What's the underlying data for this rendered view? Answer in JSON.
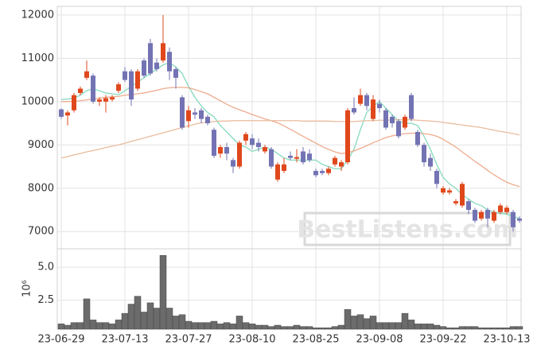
{
  "chart_data": [
    {
      "type": "candlestick",
      "categories": [
        "23-06-29",
        null,
        null,
        null,
        null,
        null,
        null,
        null,
        null,
        null,
        "23-07-13",
        null,
        null,
        null,
        null,
        null,
        null,
        null,
        null,
        null,
        "23-07-27",
        null,
        null,
        null,
        null,
        null,
        null,
        null,
        null,
        null,
        "23-08-10",
        null,
        null,
        null,
        null,
        null,
        null,
        null,
        null,
        null,
        "23-08-25",
        null,
        null,
        null,
        null,
        null,
        null,
        null,
        null,
        null,
        "23-09-08",
        null,
        null,
        null,
        null,
        null,
        null,
        null,
        null,
        null,
        "23-09-22",
        null,
        null,
        null,
        null,
        null,
        null,
        null,
        null,
        null,
        "23-10-13",
        null,
        null
      ],
      "open": [
        9820,
        9680,
        9800,
        10200,
        10550,
        10600,
        10000,
        10000,
        10050,
        10250,
        10700,
        10700,
        10300,
        10950,
        11350,
        10900,
        10950,
        11150,
        10750,
        10100,
        9550,
        9750,
        9800,
        9650,
        9350,
        8800,
        8950,
        8650,
        8500,
        9100,
        9150,
        9050,
        8850,
        8900,
        8200,
        8400,
        8750,
        8680,
        8850,
        8800,
        8400,
        8400,
        8350,
        8550,
        8500,
        8600,
        9850,
        9950,
        10150,
        9600,
        9950,
        9800,
        9650,
        9550,
        9400,
        10150,
        9300,
        9000,
        8700,
        8400,
        7900,
        7900,
        7650,
        7600,
        7700,
        7500,
        7300,
        7500,
        7250,
        7450,
        7450,
        7450,
        7300
      ],
      "high": [
        9850,
        9800,
        10200,
        10350,
        10950,
        10650,
        10100,
        10150,
        10150,
        10450,
        10800,
        10750,
        10750,
        11000,
        11450,
        11000,
        12000,
        11250,
        10800,
        10150,
        9900,
        9850,
        9850,
        9700,
        9400,
        9000,
        9050,
        8700,
        9100,
        9300,
        9250,
        9150,
        9000,
        8950,
        8600,
        8700,
        8850,
        8900,
        8950,
        8900,
        8450,
        8450,
        8500,
        8750,
        8650,
        9850,
        10100,
        10300,
        10200,
        10150,
        10050,
        9850,
        9700,
        9600,
        9700,
        10200,
        9350,
        9050,
        8800,
        8450,
        8050,
        8000,
        7750,
        8150,
        7750,
        7550,
        7500,
        7550,
        7500,
        7650,
        7600,
        7500,
        7350
      ],
      "low": [
        9600,
        9450,
        9750,
        10150,
        10500,
        9950,
        9900,
        9750,
        10000,
        10200,
        10450,
        9900,
        10250,
        10550,
        10600,
        10700,
        10900,
        10500,
        10300,
        9350,
        9400,
        9600,
        9500,
        9450,
        8700,
        8700,
        8650,
        8350,
        8450,
        9000,
        8900,
        8850,
        8800,
        8450,
        8150,
        8350,
        8650,
        8600,
        8550,
        8600,
        8250,
        8300,
        8300,
        8500,
        8400,
        8550,
        9700,
        9900,
        9800,
        9550,
        9750,
        9350,
        9400,
        9150,
        9350,
        9550,
        8950,
        8500,
        8400,
        8000,
        7850,
        7850,
        7600,
        7550,
        7400,
        7200,
        7250,
        7100,
        7200,
        7400,
        7400,
        7000,
        7200
      ],
      "close": [
        9650,
        9750,
        10150,
        10300,
        10700,
        10000,
        10050,
        10080,
        10100,
        10400,
        10500,
        10050,
        10700,
        10600,
        10650,
        10750,
        11350,
        10700,
        10550,
        9400,
        9800,
        9700,
        9600,
        9500,
        8750,
        8950,
        8800,
        8500,
        9050,
        9250,
        9000,
        8950,
        8950,
        8500,
        8550,
        8550,
        8700,
        8720,
        8600,
        8650,
        8300,
        8350,
        8450,
        8700,
        8600,
        9800,
        9750,
        10150,
        9900,
        10050,
        9850,
        9400,
        9500,
        9200,
        9650,
        9600,
        9000,
        8600,
        8500,
        8100,
        8000,
        7950,
        7700,
        8100,
        7500,
        7250,
        7450,
        7300,
        7450,
        7600,
        7550,
        7100,
        7250
      ],
      "up_color": "#e0481c",
      "down_color": "#7373b4",
      "lines": [
        {
          "color": "#86d9bd",
          "values": [
            10050,
            10060,
            10080,
            10150,
            10250,
            10300,
            10250,
            10200,
            10180,
            10160,
            10250,
            10350,
            10450,
            10550,
            10650,
            10750,
            10850,
            10900,
            10800,
            10650,
            10350,
            10100,
            9900,
            9750,
            9650,
            9450,
            9300,
            9150,
            9000,
            8950,
            8850,
            8900,
            8950,
            8900,
            8800,
            8700,
            8650,
            8650,
            8650,
            8650,
            8650,
            8550,
            8500,
            8450,
            8450,
            8650,
            8900,
            9350,
            9750,
            9900,
            10000,
            9850,
            9700,
            9550,
            9500,
            9500,
            9450,
            9200,
            8900,
            8550,
            8250,
            8100,
            8000,
            7850,
            7750,
            7650,
            7600,
            7500,
            7450,
            7420,
            7400,
            7350,
            7300
          ]
        },
        {
          "color": "#eeab8e",
          "values": [
            10000,
            10000,
            10010,
            10020,
            10040,
            10060,
            10080,
            10100,
            10110,
            10120,
            10150,
            10160,
            10180,
            10200,
            10230,
            10260,
            10300,
            10320,
            10330,
            10330,
            10320,
            10280,
            10230,
            10180,
            10100,
            10020,
            9940,
            9870,
            9810,
            9760,
            9700,
            9650,
            9600,
            9560,
            9510,
            9440,
            9360,
            9280,
            9200,
            9120,
            9040,
            8960,
            8900,
            8840,
            8800,
            8820,
            8860,
            8920,
            8980,
            9050,
            9110,
            9170,
            9210,
            9240,
            9260,
            9270,
            9270,
            9260,
            9240,
            9200,
            9130,
            9040,
            8950,
            8840,
            8730,
            8620,
            8520,
            8410,
            8310,
            8220,
            8140,
            8080,
            8040
          ]
        },
        {
          "color": "#e9bc9e",
          "values": [
            8700,
            8730,
            8770,
            8800,
            8840,
            8870,
            8900,
            8940,
            8970,
            9000,
            9040,
            9080,
            9120,
            9160,
            9200,
            9240,
            9280,
            9320,
            9360,
            9400,
            9440,
            9480,
            9510,
            9530,
            9540,
            9550,
            9550,
            9560,
            9560,
            9560,
            9560,
            9560,
            9560,
            9560,
            9560,
            9560,
            9560,
            9560,
            9550,
            9550,
            9550,
            9550,
            9550,
            9540,
            9540,
            9540,
            9540,
            9550,
            9560,
            9560,
            9570,
            9570,
            9580,
            9580,
            9580,
            9580,
            9570,
            9560,
            9550,
            9540,
            9520,
            9500,
            9480,
            9460,
            9440,
            9420,
            9400,
            9370,
            9340,
            9310,
            9290,
            9260,
            9230
          ]
        }
      ],
      "ylim": [
        6600,
        12200
      ],
      "yticks": [
        7000,
        8000,
        9000,
        10000,
        11000,
        12000
      ],
      "grid": true,
      "watermark": "BestListens.com"
    },
    {
      "type": "bar",
      "values": [
        0.7,
        0.6,
        0.8,
        0.8,
        2.6,
        1.0,
        0.8,
        0.8,
        0.7,
        1.0,
        1.5,
        2.2,
        2.8,
        1.6,
        2.3,
        1.9,
        5.9,
        1.9,
        1.3,
        1.4,
        0.9,
        0.8,
        0.8,
        0.8,
        0.9,
        0.7,
        0.8,
        0.7,
        1.3,
        0.8,
        0.7,
        0.6,
        0.6,
        0.5,
        0.6,
        0.5,
        0.5,
        0.6,
        0.5,
        0.5,
        0.4,
        0.4,
        0.4,
        0.5,
        0.6,
        1.8,
        1.3,
        1.4,
        1.1,
        1.3,
        0.8,
        0.8,
        0.8,
        0.8,
        1.5,
        1.0,
        0.7,
        0.7,
        0.7,
        0.6,
        0.5,
        0.4,
        0.4,
        0.5,
        0.5,
        0.5,
        0.4,
        0.4,
        0.4,
        0.4,
        0.4,
        0.5,
        0.5
      ],
      "color": "#6b6b6b",
      "ylabel": "10⁶",
      "ylim": [
        0.3,
        6.4
      ],
      "yticks": [
        2.5,
        {
          "value": 5,
          "label": "5.0"
        }
      ],
      "grid": true
    }
  ]
}
